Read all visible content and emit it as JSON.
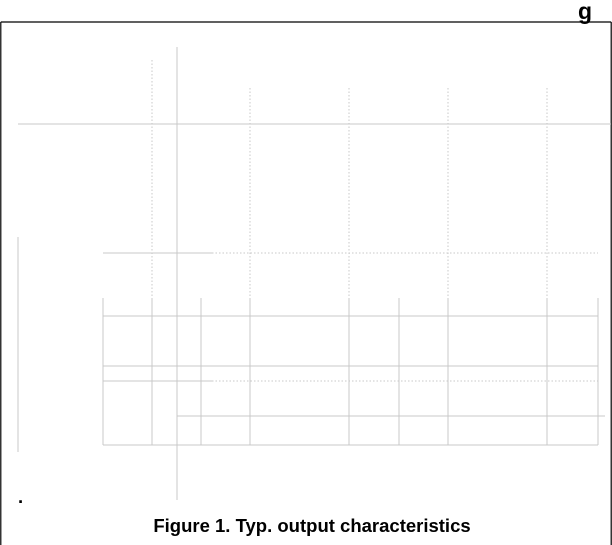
{
  "header": {
    "title_fragment": "g"
  },
  "figure": {
    "caption": "Figure 1. Typ. output characteristics",
    "stray_mark": "."
  },
  "chart_data": {
    "type": "line",
    "title": "",
    "xlabel": "",
    "ylabel": "",
    "series": [],
    "grid": true,
    "legend": "none"
  }
}
